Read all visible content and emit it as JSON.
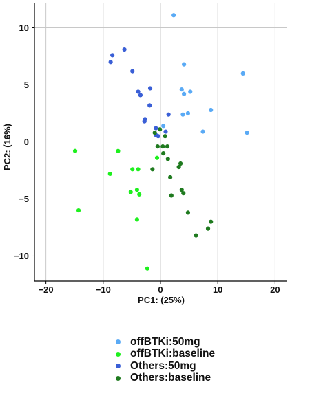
{
  "chart_data": {
    "type": "scatter",
    "xlabel": "PC1: (25%)",
    "ylabel": "PC2: (16%)",
    "xlim": [
      -22,
      22
    ],
    "ylim": [
      -12.2,
      12.2
    ],
    "xticks": [
      -20,
      -10,
      0,
      10,
      20
    ],
    "yticks": [
      -10,
      -5,
      0,
      5,
      10
    ],
    "grid": true,
    "legend_position": "bottom",
    "series": [
      {
        "name": "offBTKi:50mg",
        "color": "#5aaaf5",
        "points": [
          [
            2.3,
            11.1
          ],
          [
            4.1,
            6.8
          ],
          [
            14.4,
            6.0
          ],
          [
            3.7,
            4.6
          ],
          [
            5.2,
            4.4
          ],
          [
            4.1,
            4.2
          ],
          [
            8.8,
            2.8
          ],
          [
            4.8,
            2.5
          ],
          [
            3.9,
            2.4
          ],
          [
            0.5,
            1.4
          ],
          [
            7.4,
            0.9
          ],
          [
            15.1,
            0.8
          ]
        ]
      },
      {
        "name": "offBTKi:baseline",
        "color": "#1ef01e",
        "points": [
          [
            -14.9,
            -0.8
          ],
          [
            -7.4,
            -0.8
          ],
          [
            -0.6,
            -1.4
          ],
          [
            -4.9,
            -2.4
          ],
          [
            -3.9,
            -2.4
          ],
          [
            -8.8,
            -2.8
          ],
          [
            -5.2,
            -4.4
          ],
          [
            -4.1,
            -4.2
          ],
          [
            -3.7,
            -4.6
          ],
          [
            -14.3,
            -6.0
          ],
          [
            -4.1,
            -6.8
          ],
          [
            -2.3,
            -11.1
          ]
        ]
      },
      {
        "name": "Others:50mg",
        "color": "#3a5fd6",
        "points": [
          [
            -6.3,
            8.1
          ],
          [
            -8.4,
            7.6
          ],
          [
            -8.7,
            7.0
          ],
          [
            -4.9,
            6.2
          ],
          [
            -1.8,
            4.7
          ],
          [
            -3.9,
            4.4
          ],
          [
            -3.5,
            4.1
          ],
          [
            -1.9,
            3.2
          ],
          [
            1.4,
            2.4
          ],
          [
            -2.7,
            2.0
          ],
          [
            -2.8,
            1.8
          ],
          [
            -0.8,
            1.2
          ],
          [
            0.9,
            0.9
          ],
          [
            -0.8,
            0.6
          ],
          [
            -0.4,
            0.5
          ]
        ]
      },
      {
        "name": "Others:baseline",
        "color": "#1f7a1f",
        "points": [
          [
            -0.1,
            1.1
          ],
          [
            -1.0,
            0.8
          ],
          [
            0.8,
            0.5
          ],
          [
            -0.5,
            -0.4
          ],
          [
            0.4,
            -0.4
          ],
          [
            1.2,
            -0.4
          ],
          [
            0.5,
            -1.0
          ],
          [
            1.3,
            -1.5
          ],
          [
            3.5,
            -1.9
          ],
          [
            3.2,
            -2.2
          ],
          [
            -1.4,
            -2.4
          ],
          [
            1.7,
            -3.1
          ],
          [
            3.7,
            -4.2
          ],
          [
            4.0,
            -4.5
          ],
          [
            1.9,
            -4.7
          ],
          [
            4.8,
            -6.2
          ],
          [
            8.8,
            -7.0
          ],
          [
            8.3,
            -7.6
          ],
          [
            6.2,
            -8.2
          ]
        ]
      }
    ]
  }
}
